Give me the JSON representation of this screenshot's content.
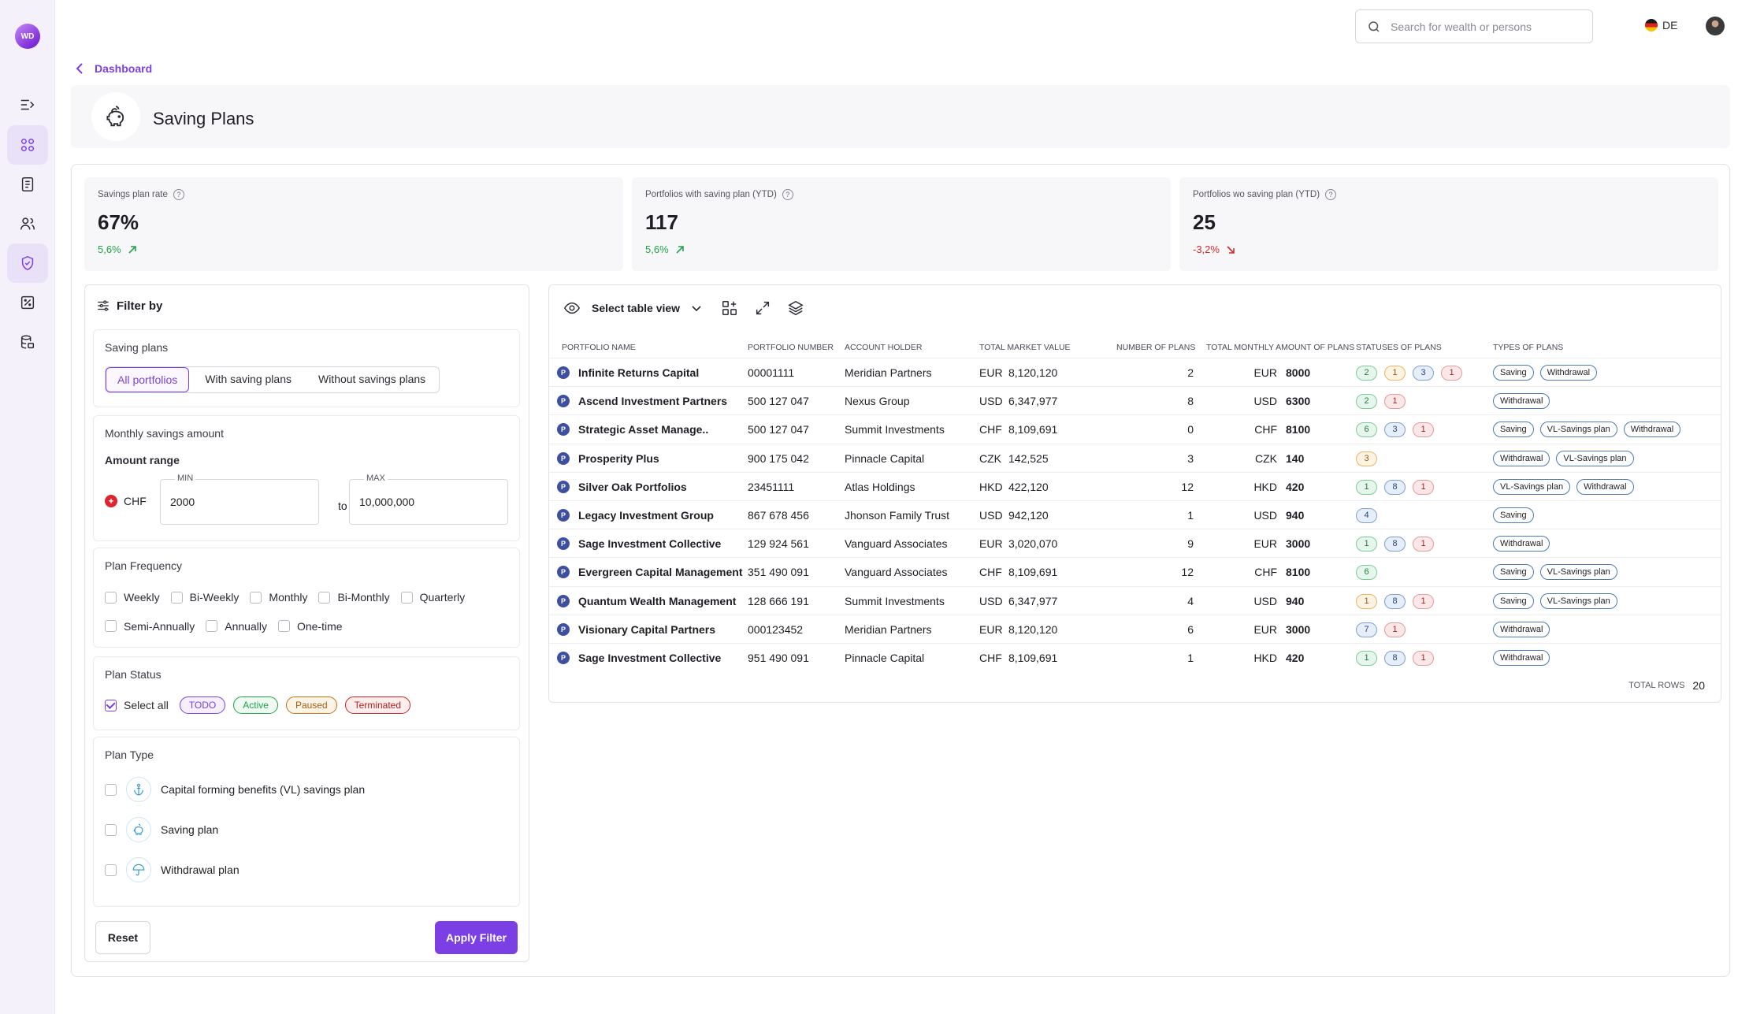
{
  "sidebar": {
    "logo": "WD"
  },
  "topbar": {
    "search_placeholder": "Search for wealth or persons",
    "lang": "DE"
  },
  "breadcrumb": {
    "label": "Dashboard"
  },
  "page": {
    "title": "Saving Plans"
  },
  "kpis": [
    {
      "label": "Savings plan rate",
      "value": "67%",
      "change": "5,6%",
      "trend": "up"
    },
    {
      "label": "Portfolios with saving plan (YTD)",
      "value": "117",
      "change": "5,6%",
      "trend": "up"
    },
    {
      "label": "Portfolios wo saving plan (YTD)",
      "value": "25",
      "change": "-3,2%",
      "trend": "down"
    }
  ],
  "filter": {
    "title": "Filter by",
    "saving_plans": {
      "title": "Saving plans",
      "options": [
        "All portfolios",
        "With saving plans",
        "Without savings plans"
      ],
      "selected": "All portfolios"
    },
    "monthly": {
      "title": "Monthly savings amount",
      "range_label": "Amount range",
      "currency": "CHF",
      "min_label": "MIN",
      "min_value": "2000",
      "to": "to",
      "max_label": "MAX",
      "max_value": "10,000,000"
    },
    "frequency": {
      "title": "Plan Frequency",
      "options": [
        "Weekly",
        "Bi-Weekly",
        "Monthly",
        "Bi-Monthly",
        "Quarterly",
        "Semi-Annually",
        "Annually",
        "One-time"
      ]
    },
    "status": {
      "title": "Plan Status",
      "select_all": "Select all",
      "pills": [
        "TODO",
        "Active",
        "Paused",
        "Terminated"
      ]
    },
    "type": {
      "title": "Plan Type",
      "options": [
        "Capital forming benefits (VL) savings plan",
        "Saving plan",
        "Withdrawal plan"
      ]
    },
    "reset": "Reset",
    "apply": "Apply Filter"
  },
  "table": {
    "view_label": "Select table view",
    "columns": [
      "PORTFOLIO NAME",
      "PORTFOLIO NUMBER",
      "ACCOUNT HOLDER",
      "TOTAL MARKET VALUE",
      "NUMBER OF PLANS",
      "TOTAL MONTHLY AMOUNT OF PLANS",
      "STATUSES OF PLANS",
      "TYPES OF PLANS"
    ],
    "rows": [
      {
        "name": "Infinite Returns Capital",
        "number": "00001111",
        "holder": "Meridian Partners",
        "mv_cur": "EUR",
        "mv": "8,120,120",
        "plans": "2",
        "amt_cur": "EUR",
        "amt": "8000",
        "statuses": [
          [
            "2",
            "g"
          ],
          [
            "1",
            "y"
          ],
          [
            "3",
            "b"
          ],
          [
            "1",
            "r"
          ]
        ],
        "types": [
          "Saving",
          "Withdrawal"
        ]
      },
      {
        "name": "Ascend Investment Partners",
        "number": "500 127 047",
        "holder": "Nexus Group",
        "mv_cur": "USD",
        "mv": "6,347,977",
        "plans": "8",
        "amt_cur": "USD",
        "amt": "6300",
        "statuses": [
          [
            "2",
            "g"
          ],
          [
            "1",
            "r"
          ]
        ],
        "types": [
          "Withdrawal"
        ]
      },
      {
        "name": "Strategic Asset Manage..",
        "number": "500 127 047",
        "holder": "Summit Investments",
        "mv_cur": "CHF",
        "mv": "8,109,691",
        "plans": "0",
        "amt_cur": "CHF",
        "amt": "8100",
        "statuses": [
          [
            "6",
            "g"
          ],
          [
            "3",
            "b"
          ],
          [
            "1",
            "r"
          ]
        ],
        "types": [
          "Saving",
          "VL-Savings plan",
          "Withdrawal"
        ]
      },
      {
        "name": "Prosperity Plus",
        "number": "900 175 042",
        "holder": "Pinnacle Capital",
        "mv_cur": "CZK",
        "mv": "142,525",
        "plans": "3",
        "amt_cur": "CZK",
        "amt": "140",
        "statuses": [
          [
            "3",
            "y"
          ]
        ],
        "types": [
          "Withdrawal",
          "VL-Savings plan"
        ]
      },
      {
        "name": "Silver Oak Portfolios",
        "number": "23451111",
        "holder": "Atlas Holdings",
        "mv_cur": "HKD",
        "mv": "422,120",
        "plans": "12",
        "amt_cur": "HKD",
        "amt": "420",
        "statuses": [
          [
            "1",
            "g"
          ],
          [
            "8",
            "b"
          ],
          [
            "1",
            "r"
          ]
        ],
        "types": [
          "VL-Savings plan",
          "Withdrawal"
        ]
      },
      {
        "name": "Legacy Investment Group",
        "number": "867 678 456",
        "holder": "Jhonson Family Trust",
        "mv_cur": "USD",
        "mv": "942,120",
        "plans": "1",
        "amt_cur": "USD",
        "amt": "940",
        "statuses": [
          [
            "4",
            "b"
          ]
        ],
        "types": [
          "Saving"
        ]
      },
      {
        "name": "Sage Investment Collective",
        "number": "129 924 561",
        "holder": "Vanguard Associates",
        "mv_cur": "EUR",
        "mv": "3,020,070",
        "plans": "9",
        "amt_cur": "EUR",
        "amt": "3000",
        "statuses": [
          [
            "1",
            "g"
          ],
          [
            "8",
            "b"
          ],
          [
            "1",
            "r"
          ]
        ],
        "types": [
          "Withdrawal"
        ]
      },
      {
        "name": "Evergreen Capital Management",
        "number": "351 490 091",
        "holder": "Vanguard Associates",
        "mv_cur": "CHF",
        "mv": "8,109,691",
        "plans": "12",
        "amt_cur": "CHF",
        "amt": "8100",
        "statuses": [
          [
            "6",
            "g"
          ]
        ],
        "types": [
          "Saving",
          "VL-Savings plan"
        ]
      },
      {
        "name": "Quantum Wealth Management",
        "number": "128 666 191",
        "holder": "Summit Investments",
        "mv_cur": "USD",
        "mv": "6,347,977",
        "plans": "4",
        "amt_cur": "USD",
        "amt": "940",
        "statuses": [
          [
            "1",
            "y"
          ],
          [
            "8",
            "b"
          ],
          [
            "1",
            "r"
          ]
        ],
        "types": [
          "Saving",
          "VL-Savings plan"
        ]
      },
      {
        "name": "Visionary Capital Partners",
        "number": "000123452",
        "holder": "Meridian Partners",
        "mv_cur": "EUR",
        "mv": "8,120,120",
        "plans": "6",
        "amt_cur": "EUR",
        "amt": "3000",
        "statuses": [
          [
            "7",
            "b"
          ],
          [
            "1",
            "r"
          ]
        ],
        "types": [
          "Withdrawal"
        ]
      },
      {
        "name": "Sage Investment Collective",
        "number": "951 490 091",
        "holder": "Pinnacle Capital",
        "mv_cur": "CHF",
        "mv": "8,109,691",
        "plans": "1",
        "amt_cur": "HKD",
        "amt": "420",
        "statuses": [
          [
            "1",
            "g"
          ],
          [
            "8",
            "b"
          ],
          [
            "1",
            "r"
          ]
        ],
        "types": [
          "Withdrawal"
        ]
      }
    ],
    "total_rows_label": "TOTAL ROWS",
    "total_rows": "20"
  }
}
